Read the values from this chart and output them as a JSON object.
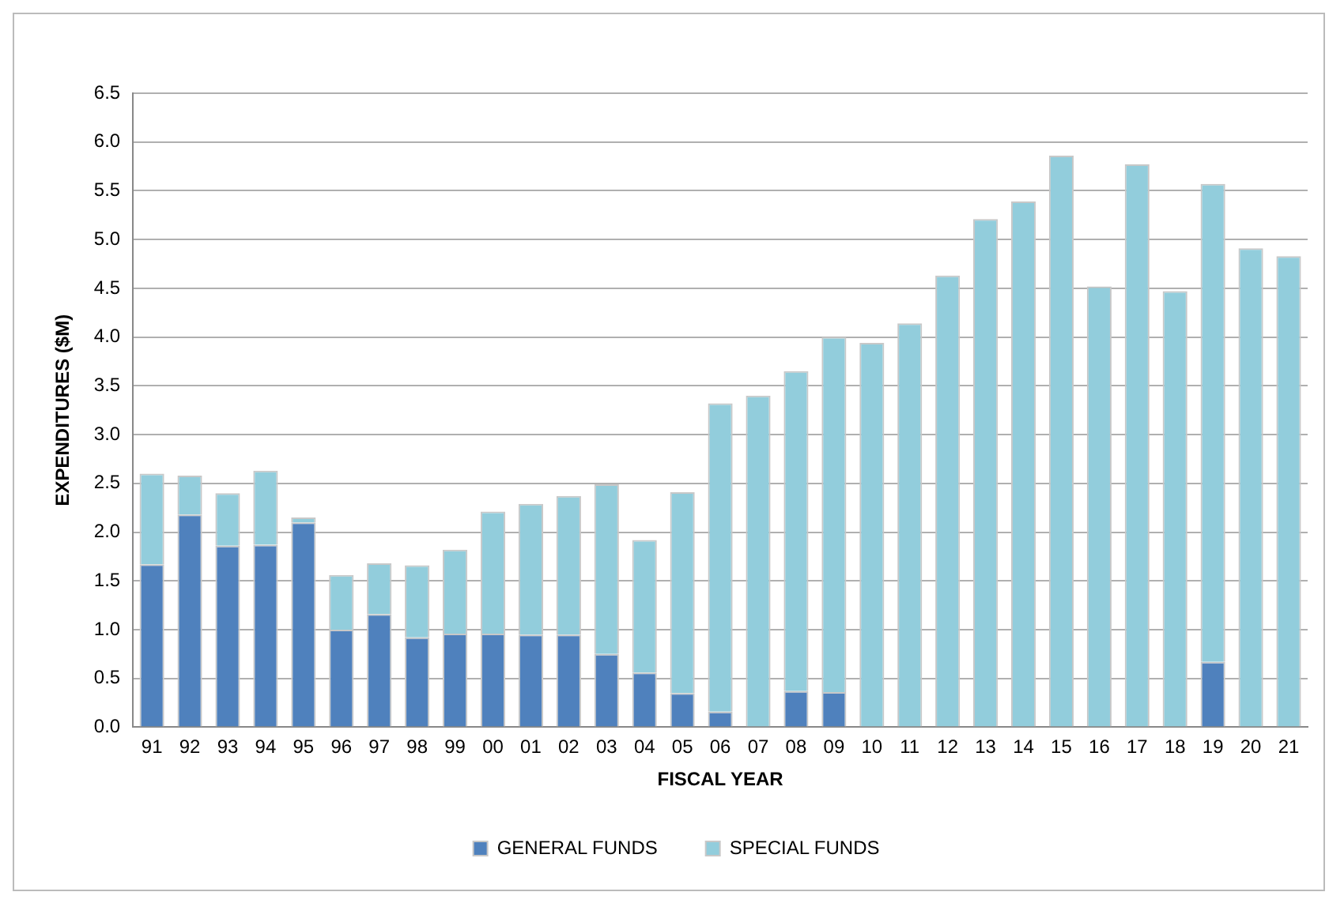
{
  "chart_data": {
    "type": "bar",
    "xlabel": "FISCAL YEAR",
    "ylabel": "EXPENDITURES ($M)",
    "categories": [
      "91",
      "92",
      "93",
      "94",
      "95",
      "96",
      "97",
      "98",
      "99",
      "00",
      "01",
      "02",
      "03",
      "04",
      "05",
      "06",
      "07",
      "08",
      "09",
      "10",
      "11",
      "12",
      "13",
      "14",
      "15",
      "16",
      "17",
      "18",
      "19",
      "20",
      "21"
    ],
    "series": [
      {
        "name": "GENERAL FUNDS",
        "color": "#4f81bd",
        "values": [
          1.67,
          2.18,
          1.86,
          1.87,
          2.1,
          1.0,
          1.16,
          0.92,
          0.96,
          0.96,
          0.95,
          0.95,
          0.75,
          0.56,
          0.35,
          0.16,
          0,
          0.37,
          0.36,
          0,
          0,
          0,
          0,
          0,
          0,
          0,
          0,
          0,
          0.67,
          0,
          0
        ]
      },
      {
        "name": "SPECIAL FUNDS",
        "color": "#92cddc",
        "values": [
          0.93,
          0.4,
          0.54,
          0.76,
          0.05,
          0.56,
          0.52,
          0.74,
          0.86,
          1.25,
          1.34,
          1.42,
          1.74,
          1.36,
          2.06,
          3.16,
          3.4,
          3.28,
          3.64,
          3.94,
          4.14,
          4.63,
          5.21,
          5.39,
          5.86,
          4.52,
          5.77,
          4.47,
          4.9,
          4.91,
          4.83
        ]
      }
    ],
    "stacked": true,
    "ylim": [
      0,
      6.5
    ],
    "yticks": [
      {
        "value": 0,
        "label": "0.0"
      },
      0.5,
      {
        "value": 1,
        "label": "1.0"
      },
      1.5,
      {
        "value": 2,
        "label": "2.0"
      },
      2.5,
      {
        "value": 3,
        "label": "3.0"
      },
      3.5,
      {
        "value": 4,
        "label": "4.0"
      },
      4.5,
      {
        "value": 5,
        "label": "5.0"
      },
      5.5,
      {
        "value": 6,
        "label": "6.0"
      },
      6.5
    ],
    "grid": "y",
    "legend": "bottom"
  }
}
